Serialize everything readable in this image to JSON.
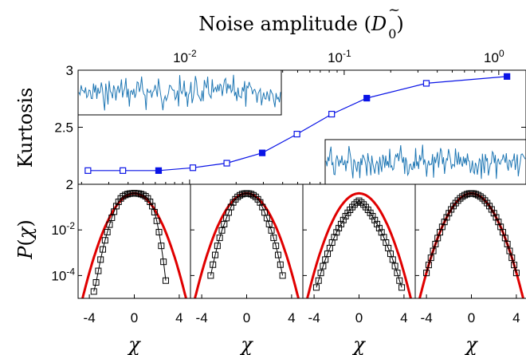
{
  "chart_data": [
    {
      "type": "line",
      "title": "",
      "top_axis_label": "Noise amplitude ($\\tilde{D}_0$)",
      "top_axis_label_text": "Noise amplitude (",
      "top_axis_symbol": "D",
      "top_axis_label_close": ")",
      "ylabel": "Kurtosis",
      "x_scale": "log",
      "xlim": [
        0.0019,
        1.5
      ],
      "ylim": [
        2,
        3
      ],
      "x_ticks": [
        {
          "value": 0.01,
          "mantissa": "10",
          "exponent": "-2"
        },
        {
          "value": 0.1,
          "mantissa": "10",
          "exponent": "-1"
        },
        {
          "value": 1,
          "mantissa": "10",
          "exponent": "0"
        }
      ],
      "y_ticks": [
        "2",
        "2.5",
        "3"
      ],
      "y_tick_values": [
        2,
        2.5,
        3
      ],
      "series": [
        {
          "color": "#0a14e6",
          "x": [
            0.0022,
            0.0037,
            0.0063,
            0.0105,
            0.0174,
            0.0295,
            0.0495,
            0.083,
            0.14,
            0.34,
            1.13
          ],
          "y": [
            2.12,
            2.12,
            2.12,
            2.145,
            2.185,
            2.275,
            2.44,
            2.615,
            2.755,
            2.885,
            2.945
          ],
          "filled": [
            false,
            false,
            true,
            false,
            false,
            true,
            false,
            false,
            true,
            false,
            true
          ]
        }
      ],
      "insets": [
        {
          "position": "top-left",
          "content": "time series trace",
          "color": "#1f77b4"
        },
        {
          "position": "bottom-right",
          "content": "time series trace",
          "color": "#1f77b4"
        }
      ]
    },
    {
      "type": "scatter",
      "panels": 4,
      "xlabel": "χ",
      "ylabel": "P(χ)",
      "ylabel_symbol": "P",
      "ylabel_open": "(",
      "ylabel_var": "χ",
      "ylabel_close": ")",
      "y_scale": "log",
      "xlim": [
        -5,
        5
      ],
      "ylim": [
        1e-05,
        1
      ],
      "x_ticks": [
        "-4",
        "0",
        "4"
      ],
      "x_tick_values": [
        -4,
        0,
        4
      ],
      "y_ticks": [
        {
          "value": 0.01,
          "mantissa": "10",
          "exponent": "-2"
        },
        {
          "value": 0.0001,
          "mantissa": "10",
          "exponent": "-4"
        }
      ],
      "gaussian_fit": {
        "name": "Gaussian",
        "color": "#e00000",
        "mean": 0,
        "sigma": 1
      },
      "marker_color": "#000000",
      "panel_data": [
        {
          "points_x": [
            -3.6,
            -3.4,
            -3.2,
            -3.0,
            -2.8,
            -2.6,
            -2.4,
            -2.2,
            -2.0,
            -1.8,
            -1.6,
            -1.4,
            -1.2,
            -1.0,
            -0.8,
            -0.6,
            -0.4,
            -0.2,
            0.0,
            0.2,
            0.4,
            0.6,
            0.8,
            1.0,
            1.2,
            1.4,
            1.6,
            1.8,
            2.0,
            2.2,
            2.4,
            2.6,
            2.8
          ],
          "points_y": [
            2e-05,
            5e-05,
            0.00016,
            0.0005,
            0.0014,
            0.0035,
            0.008,
            0.017,
            0.034,
            0.063,
            0.11,
            0.17,
            0.24,
            0.3,
            0.34,
            0.37,
            0.39,
            0.4,
            0.41,
            0.4,
            0.39,
            0.37,
            0.34,
            0.3,
            0.24,
            0.17,
            0.11,
            0.06,
            0.025,
            0.008,
            0.002,
            0.0004,
            6e-05
          ]
        },
        {
          "points_x": [
            -3.2,
            -3.0,
            -2.8,
            -2.6,
            -2.4,
            -2.2,
            -2.0,
            -1.8,
            -1.6,
            -1.4,
            -1.2,
            -1.0,
            -0.8,
            -0.6,
            -0.4,
            -0.2,
            0.0,
            0.2,
            0.4,
            0.6,
            0.8,
            1.0,
            1.2,
            1.4,
            1.6,
            1.8,
            2.0,
            2.2,
            2.4,
            2.6,
            2.8,
            3.0,
            3.2
          ],
          "points_y": [
            0.0001,
            0.0003,
            0.0008,
            0.002,
            0.0045,
            0.0095,
            0.018,
            0.033,
            0.058,
            0.1,
            0.16,
            0.22,
            0.28,
            0.33,
            0.37,
            0.39,
            0.4,
            0.39,
            0.37,
            0.33,
            0.28,
            0.22,
            0.16,
            0.1,
            0.058,
            0.033,
            0.018,
            0.0095,
            0.0045,
            0.002,
            0.0008,
            0.0003,
            0.0001
          ]
        },
        {
          "points_x": [
            -3.8,
            -3.6,
            -3.4,
            -3.2,
            -3.0,
            -2.8,
            -2.6,
            -2.4,
            -2.2,
            -2.0,
            -1.8,
            -1.6,
            -1.4,
            -1.2,
            -1.0,
            -0.8,
            -0.6,
            -0.4,
            -0.2,
            0.0,
            0.2,
            0.4,
            0.6,
            0.8,
            1.0,
            1.2,
            1.4,
            1.6,
            1.8,
            2.0,
            2.2,
            2.4,
            2.6,
            2.8,
            3.0,
            3.2,
            3.4,
            3.6,
            3.8
          ],
          "points_y": [
            3e-05,
            6e-05,
            0.00013,
            0.00026,
            0.0005,
            0.0009,
            0.0016,
            0.0028,
            0.0048,
            0.0078,
            0.012,
            0.018,
            0.027,
            0.04,
            0.056,
            0.076,
            0.1,
            0.13,
            0.16,
            0.19,
            0.16,
            0.13,
            0.1,
            0.076,
            0.056,
            0.04,
            0.027,
            0.018,
            0.012,
            0.0078,
            0.0048,
            0.0028,
            0.0016,
            0.0009,
            0.0005,
            0.00026,
            0.00013,
            6e-05,
            3e-05
          ]
        },
        {
          "points_x": [
            -4.0,
            -3.8,
            -3.6,
            -3.4,
            -3.2,
            -3.0,
            -2.8,
            -2.6,
            -2.4,
            -2.2,
            -2.0,
            -1.8,
            -1.6,
            -1.4,
            -1.2,
            -1.0,
            -0.8,
            -0.6,
            -0.4,
            -0.2,
            0.0,
            0.2,
            0.4,
            0.6,
            0.8,
            1.0,
            1.2,
            1.4,
            1.6,
            1.8,
            2.0,
            2.2,
            2.4,
            2.6,
            2.8,
            3.0,
            3.2,
            3.4,
            3.6,
            3.8,
            4.0
          ],
          "points_y": [
            0.00013,
            0.00029,
            0.0006,
            0.0012,
            0.0024,
            0.0044,
            0.0079,
            0.0136,
            0.0224,
            0.0355,
            0.054,
            0.079,
            0.111,
            0.15,
            0.194,
            0.242,
            0.29,
            0.333,
            0.368,
            0.391,
            0.399,
            0.391,
            0.368,
            0.333,
            0.29,
            0.242,
            0.194,
            0.15,
            0.111,
            0.079,
            0.054,
            0.0355,
            0.0224,
            0.0136,
            0.0079,
            0.0044,
            0.0024,
            0.0012,
            0.0006,
            0.00029,
            0.00013
          ]
        }
      ]
    }
  ]
}
